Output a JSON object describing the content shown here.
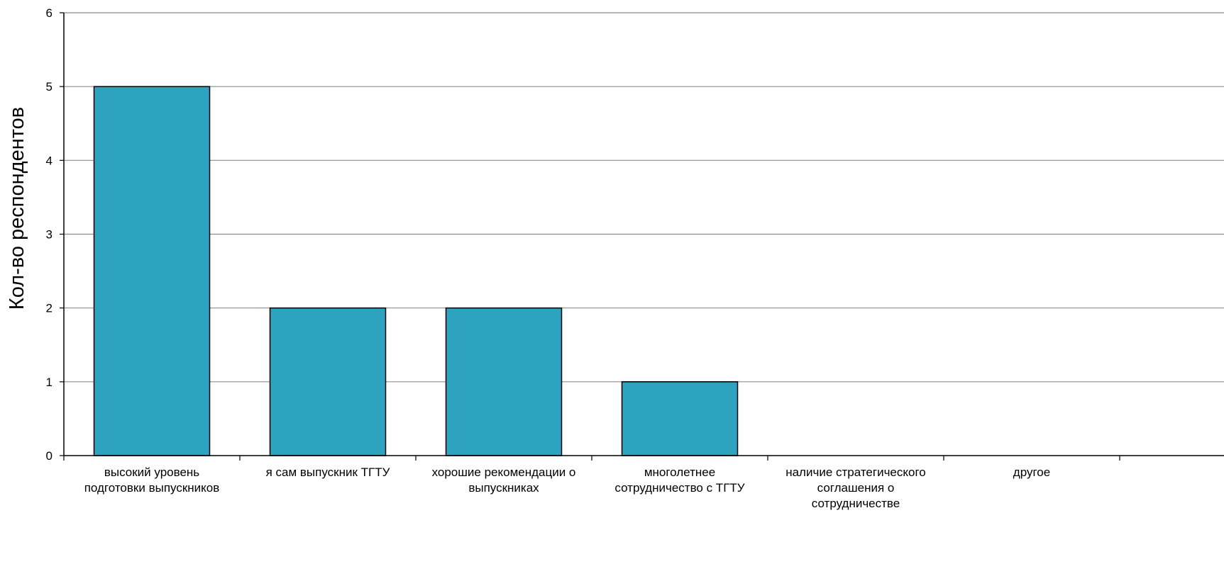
{
  "chart_data": {
    "type": "bar",
    "title": "",
    "xlabel": "",
    "ylabel": "Кол-во респондентов",
    "ylim": [
      0,
      6
    ],
    "yticks": [
      0,
      1,
      2,
      3,
      4,
      5,
      6
    ],
    "grid": true,
    "legend": "none",
    "categories": [
      [
        "высокий уровень",
        "подготовки выпускников"
      ],
      [
        "я сам выпускник  ТГТУ"
      ],
      [
        "хорошие рекомендации о",
        "выпускниках"
      ],
      [
        "многолетнее",
        "сотрудничество с  ТГТУ"
      ],
      [
        "наличие стратегического",
        "соглашения о",
        "сотрудничестве"
      ],
      [
        "другое"
      ]
    ],
    "values": [
      5,
      2,
      2,
      1,
      0,
      0
    ],
    "colors": {
      "bar_fill": "#2ea3bf",
      "bar_stroke": "#000000",
      "grid": "#8c8c8c",
      "axis": "#000000"
    }
  }
}
